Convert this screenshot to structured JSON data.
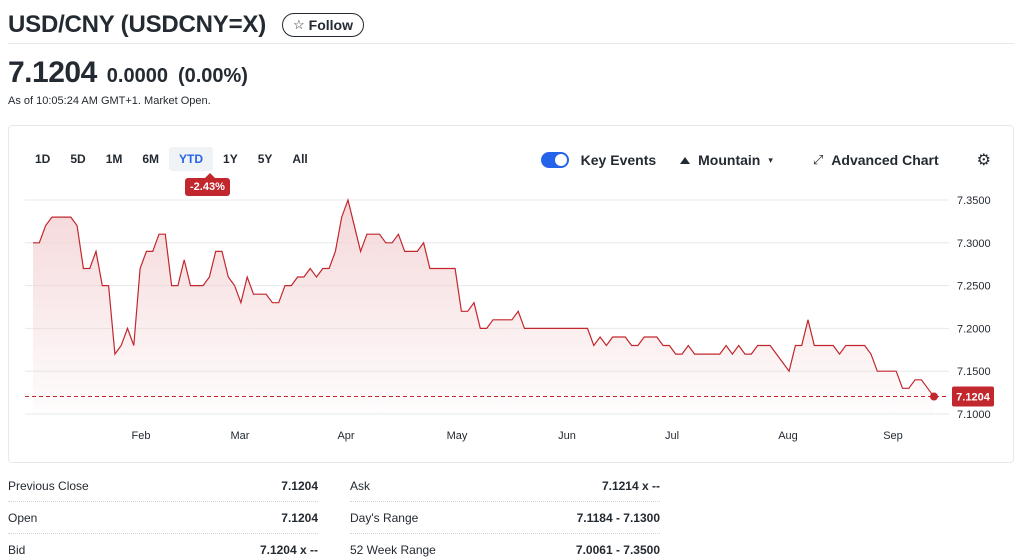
{
  "header": {
    "title": "USD/CNY (USDCNY=X)",
    "follow_label": "Follow",
    "follow_icon": "star-outline-icon"
  },
  "quote": {
    "price": "7.1204",
    "change": "0.0000",
    "change_pct": "(0.00%)",
    "as_of": "As of 10:05:24 AM GMT+1. Market Open."
  },
  "chart_controls": {
    "ranges": [
      "1D",
      "5D",
      "1M",
      "6M",
      "YTD",
      "1Y",
      "5Y",
      "All"
    ],
    "active_range": "YTD",
    "period_change": "-2.43%",
    "key_events_label": "Key Events",
    "key_events_on": true,
    "chart_type_label": "Mountain",
    "advanced_label": "Advanced Chart",
    "settings_icon": "gear-icon"
  },
  "colors": {
    "line": "#c1272d",
    "fill": "#f3d1d3",
    "accent": "#2563eb",
    "price_tag": "#c1272d"
  },
  "chart_data": {
    "type": "area",
    "months": [
      "Feb",
      "Mar",
      "Apr",
      "May",
      "Jun",
      "Jul",
      "Aug",
      "Sep"
    ],
    "y_ticks": [
      "7.3500",
      "7.3000",
      "7.2500",
      "7.2000",
      "7.1500",
      "7.1000"
    ],
    "ylim": [
      7.1,
      7.35
    ],
    "current_label": "7.1204",
    "current_value": 7.1204,
    "series": [
      7.3,
      7.3,
      7.32,
      7.33,
      7.33,
      7.33,
      7.33,
      7.32,
      7.27,
      7.27,
      7.29,
      7.25,
      7.25,
      7.17,
      7.18,
      7.2,
      7.18,
      7.27,
      7.29,
      7.29,
      7.31,
      7.31,
      7.25,
      7.25,
      7.28,
      7.25,
      7.25,
      7.25,
      7.26,
      7.29,
      7.29,
      7.26,
      7.25,
      7.23,
      7.26,
      7.24,
      7.24,
      7.24,
      7.23,
      7.23,
      7.25,
      7.25,
      7.26,
      7.26,
      7.27,
      7.26,
      7.27,
      7.27,
      7.29,
      7.33,
      7.35,
      7.32,
      7.29,
      7.31,
      7.31,
      7.31,
      7.3,
      7.3,
      7.31,
      7.29,
      7.29,
      7.29,
      7.3,
      7.27,
      7.27,
      7.27,
      7.27,
      7.27,
      7.22,
      7.22,
      7.23,
      7.2,
      7.2,
      7.21,
      7.21,
      7.21,
      7.21,
      7.22,
      7.2,
      7.2,
      7.2,
      7.2,
      7.2,
      7.2,
      7.2,
      7.2,
      7.2,
      7.2,
      7.2,
      7.18,
      7.19,
      7.18,
      7.19,
      7.19,
      7.19,
      7.18,
      7.18,
      7.19,
      7.19,
      7.19,
      7.18,
      7.18,
      7.17,
      7.17,
      7.18,
      7.17,
      7.17,
      7.17,
      7.17,
      7.17,
      7.18,
      7.17,
      7.18,
      7.17,
      7.17,
      7.18,
      7.18,
      7.18,
      7.17,
      7.16,
      7.15,
      7.18,
      7.18,
      7.21,
      7.18,
      7.18,
      7.18,
      7.18,
      7.17,
      7.18,
      7.18,
      7.18,
      7.18,
      7.17,
      7.15,
      7.15,
      7.15,
      7.15,
      7.13,
      7.13,
      7.14,
      7.14,
      7.13,
      7.12
    ]
  },
  "stats": {
    "left": [
      {
        "label": "Previous Close",
        "value": "7.1204"
      },
      {
        "label": "Open",
        "value": "7.1204"
      },
      {
        "label": "Bid",
        "value": "7.1204 x --"
      }
    ],
    "right": [
      {
        "label": "Ask",
        "value": "7.1214 x --"
      },
      {
        "label": "Day's Range",
        "value": "7.1184 - 7.1300"
      },
      {
        "label": "52 Week Range",
        "value": "7.0061 - 7.3500"
      }
    ]
  }
}
